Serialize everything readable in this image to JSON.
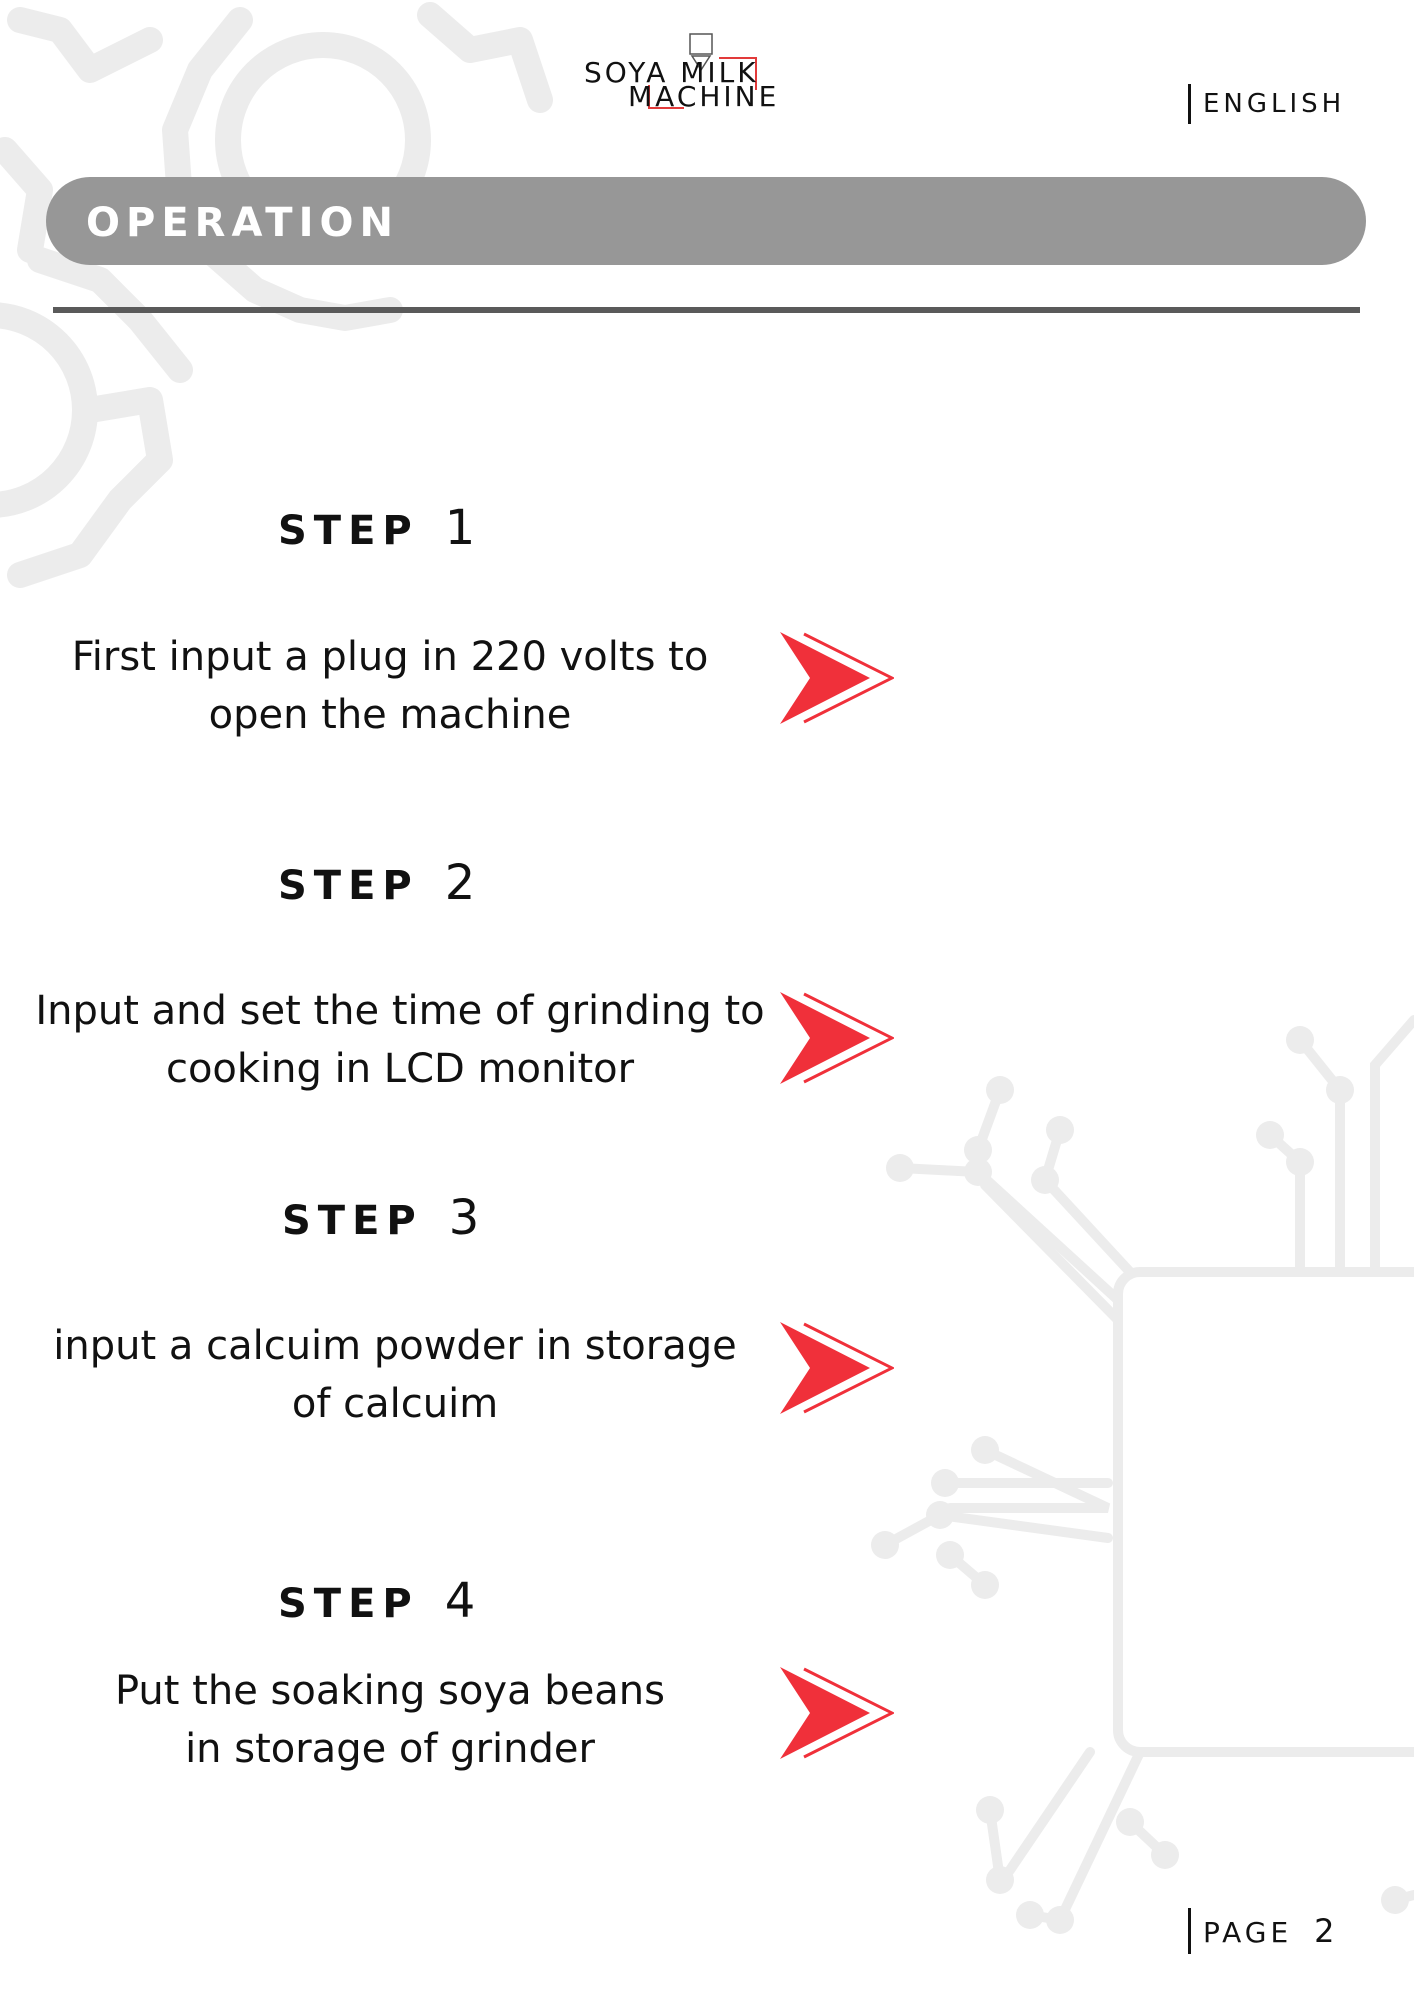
{
  "header": {
    "logo_line1": "SOYA MILK",
    "logo_line2": "MACHINE",
    "language": "ENGLISH"
  },
  "banner": {
    "title": "OPERATION"
  },
  "steps": [
    {
      "label": "STEP",
      "number": "1",
      "text_line1": "First input a plug in 220 volts to",
      "text_line2": "open the machine"
    },
    {
      "label": "STEP",
      "number": "2",
      "text_line1": "Input and set the time of grinding to",
      "text_line2": "cooking in LCD monitor"
    },
    {
      "label": "STEP",
      "number": "3",
      "text_line1": "input a calcuim powder in storage",
      "text_line2": "of calcuim"
    },
    {
      "label": "STEP",
      "number": "4",
      "text_line1": "Put the soaking soya beans",
      "text_line2": "in storage of grinder"
    }
  ],
  "footer": {
    "page_label": "PAGE",
    "page_number": "2"
  },
  "colors": {
    "banner": "#979797",
    "arrow": "#f0303a",
    "decor": "#ececec",
    "rule": "#5a5a5a"
  },
  "icons": {
    "step_arrow": "double-chevron-right-icon",
    "gear": "gear-icon",
    "circuit": "circuit-board-icon"
  }
}
